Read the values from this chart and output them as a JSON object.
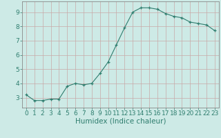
{
  "x": [
    0,
    1,
    2,
    3,
    4,
    5,
    6,
    7,
    8,
    9,
    10,
    11,
    12,
    13,
    14,
    15,
    16,
    17,
    18,
    19,
    20,
    21,
    22,
    23
  ],
  "y": [
    3.2,
    2.8,
    2.8,
    2.9,
    2.9,
    3.8,
    4.0,
    3.9,
    4.0,
    4.7,
    5.5,
    6.7,
    7.9,
    9.0,
    9.3,
    9.3,
    9.2,
    8.9,
    8.7,
    8.6,
    8.3,
    8.2,
    8.1,
    7.7
  ],
  "xlabel": "Humidex (Indice chaleur)",
  "line_color": "#2e7d6e",
  "marker": "+",
  "marker_color": "#2e7d6e",
  "bg_color": "#cdeae6",
  "grid_color": "#c8a8a8",
  "axis_color": "#888888",
  "tick_color": "#2e7d6e",
  "xlabel_color": "#2e7d6e",
  "xlim": [
    -0.5,
    23.5
  ],
  "ylim": [
    2.3,
    9.75
  ],
  "yticks": [
    3,
    4,
    5,
    6,
    7,
    8,
    9
  ],
  "xticks": [
    0,
    1,
    2,
    3,
    4,
    5,
    6,
    7,
    8,
    9,
    10,
    11,
    12,
    13,
    14,
    15,
    16,
    17,
    18,
    19,
    20,
    21,
    22,
    23
  ],
  "font_size": 6.5,
  "xlabel_font_size": 7.5
}
